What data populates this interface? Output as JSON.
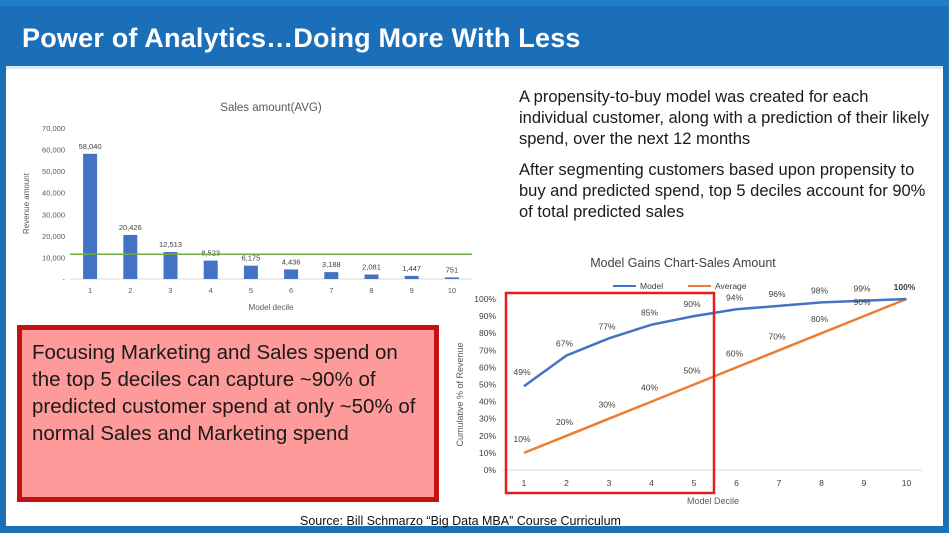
{
  "slide": {
    "title": "Power of Analytics…Doing More With Less",
    "text_paragraphs": [
      "A propensity-to-buy model was created for each individual customer, along with a prediction of their likely spend, over the next 12 months",
      "After segmenting customers based upon propensity to buy and predicted spend, top 5 deciles account for 90% of total predicted sales"
    ],
    "callout": "Focusing Marketing and Sales spend on the top 5 deciles can capture ~90% of predicted customer spend at only ~50% of normal Sales and Marketing spend",
    "source": "Source: Bill Schmarzo “Big Data MBA” Course Curriculum"
  },
  "colors": {
    "header_blue": "#1a6fb8",
    "bar_blue": "#4472c4",
    "reference_line_green": "#70ad47",
    "model_line_blue": "#4472c4",
    "average_line_orange": "#ed7d31",
    "callout_fill": "#ff9a9a",
    "callout_border": "#c41212",
    "highlight_box_red": "#e02020"
  },
  "chart_data": [
    {
      "type": "bar",
      "title": "Sales amount(AVG)",
      "xlabel": "Model decile",
      "ylabel": "Revenue amount",
      "categories": [
        "1",
        "2",
        "3",
        "4",
        "5",
        "6",
        "7",
        "8",
        "9",
        "10"
      ],
      "values": [
        58040,
        20426,
        12513,
        8523,
        6175,
        4436,
        3188,
        2081,
        1447,
        751
      ],
      "data_labels": [
        "58,040",
        "20,426",
        "12,513",
        "8,523",
        "6,175",
        "4,436",
        "3,188",
        "2,081",
        "1,447",
        "751"
      ],
      "ylim": [
        0,
        70000
      ],
      "y_ticks": [
        "-",
        "10,000",
        "20,000",
        "30,000",
        "40,000",
        "50,000",
        "60,000",
        "70,000"
      ],
      "reference_line": 11500,
      "grid": false
    },
    {
      "type": "line",
      "title": "Model Gains Chart-Sales Amount",
      "xlabel": "Model Decile",
      "ylabel": "Cumulative % of Revenue",
      "x": [
        1,
        2,
        3,
        4,
        5,
        6,
        7,
        8,
        9,
        10
      ],
      "ylim": [
        0,
        100
      ],
      "y_ticks": [
        "0%",
        "10%",
        "20%",
        "30%",
        "40%",
        "50%",
        "60%",
        "70%",
        "80%",
        "90%",
        "100%"
      ],
      "legend_position": "top-center",
      "series": [
        {
          "name": "Model",
          "values": [
            49,
            67,
            77,
            85,
            90,
            94,
            96,
            98,
            99,
            100
          ],
          "labels": [
            "49%",
            "67%",
            "77%",
            "85%",
            "90%",
            "94%",
            "96%",
            "98%",
            "99%",
            "100%"
          ]
        },
        {
          "name": "Average",
          "values": [
            10,
            20,
            30,
            40,
            50,
            60,
            70,
            80,
            90,
            100
          ],
          "labels": [
            "10%",
            "20%",
            "30%",
            "40%",
            "50%",
            "60%",
            "70%",
            "80%",
            "90%",
            "100%"
          ]
        }
      ],
      "highlight": {
        "from_decile": 1,
        "to_decile": 5
      }
    }
  ]
}
